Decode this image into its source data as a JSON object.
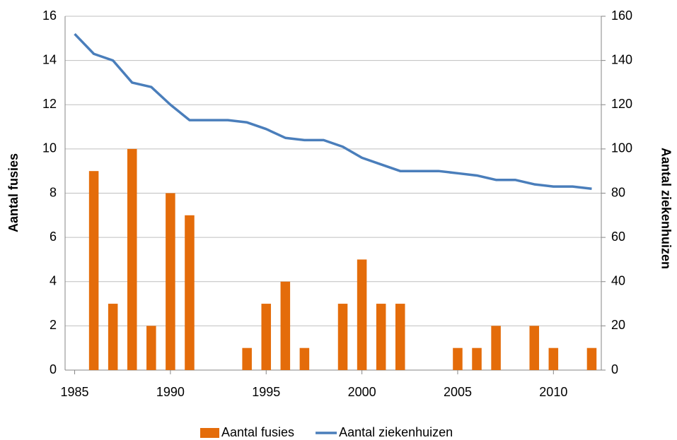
{
  "chart_data": {
    "type": "bar",
    "x": [
      1985,
      1986,
      1987,
      1988,
      1989,
      1990,
      1991,
      1992,
      1993,
      1994,
      1995,
      1996,
      1997,
      1998,
      1999,
      2000,
      2001,
      2002,
      2003,
      2004,
      2005,
      2006,
      2007,
      2008,
      2009,
      2010,
      2011,
      2012
    ],
    "series": [
      {
        "name": "Aantal fusies",
        "type": "bar",
        "color": "#e46c0a",
        "values": [
          0,
          9,
          3,
          10,
          2,
          8,
          7,
          0,
          0,
          1,
          3,
          4,
          1,
          0,
          3,
          5,
          3,
          3,
          0,
          0,
          1,
          1,
          2,
          0,
          2,
          1,
          0,
          1
        ]
      },
      {
        "name": "Aantal ziekenhuizen",
        "type": "line",
        "axis": "y2",
        "color": "#4a7ebb",
        "values": [
          152,
          143,
          140,
          130,
          128,
          120,
          113,
          113,
          113,
          112,
          109,
          105,
          104,
          104,
          101,
          96,
          93,
          90,
          90,
          90,
          89,
          88,
          86,
          86,
          84,
          83,
          83,
          82
        ]
      }
    ],
    "y_label": "Aantal fusies",
    "y2_label": "Aantal ziekenhuizen",
    "xlim": [
      1984.5,
      2012.5
    ],
    "xticks": [
      1985,
      1990,
      1995,
      2000,
      2005,
      2010
    ],
    "ylim": [
      0,
      16
    ],
    "yticks": [
      0,
      2,
      4,
      6,
      8,
      10,
      12,
      14,
      16
    ],
    "y2lim": [
      0,
      160
    ],
    "y2ticks": [
      0,
      20,
      40,
      60,
      80,
      100,
      120,
      140,
      160
    ],
    "grid": true,
    "legend": "bottom"
  }
}
